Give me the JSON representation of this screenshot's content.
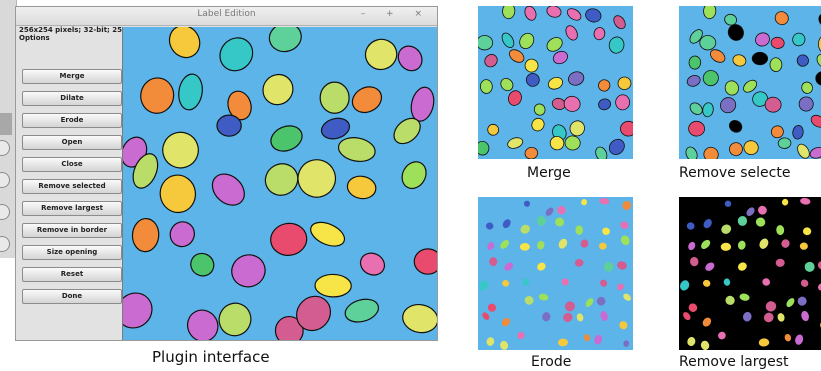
{
  "window": {
    "title": "Label Edition",
    "controls": "– + ×",
    "image_info": "256x254 pixels; 32-bit; 254K",
    "options_label": "Options"
  },
  "buttons": [
    {
      "label": "Merge"
    },
    {
      "label": "Dilate"
    },
    {
      "label": "Erode"
    },
    {
      "label": "Open"
    },
    {
      "label": "Close"
    },
    {
      "label": "Remove selected"
    },
    {
      "label": "Remove largest"
    },
    {
      "label": "Remove in border"
    },
    {
      "label": "Size opening"
    },
    {
      "label": "Reset"
    },
    {
      "label": "Done"
    }
  ],
  "captions": {
    "plugin": "Plugin interface",
    "merge": "Merge",
    "remove_selected": "Remove selecte",
    "erode": "Erode",
    "remove_largest": "Remove largest"
  },
  "colors": {
    "background_blue": "#5cb4e8",
    "black_background": "#000000",
    "label_palette": [
      "#e94b6f",
      "#f7e447",
      "#7b6fc4",
      "#4bc46b",
      "#f28c3a",
      "#36c7c7",
      "#c96bd0",
      "#9fe05a",
      "#e86fb0",
      "#3f5bc4",
      "#b9dd68",
      "#f6c83c",
      "#5ed09a",
      "#e0e56a",
      "#d35d90"
    ]
  }
}
